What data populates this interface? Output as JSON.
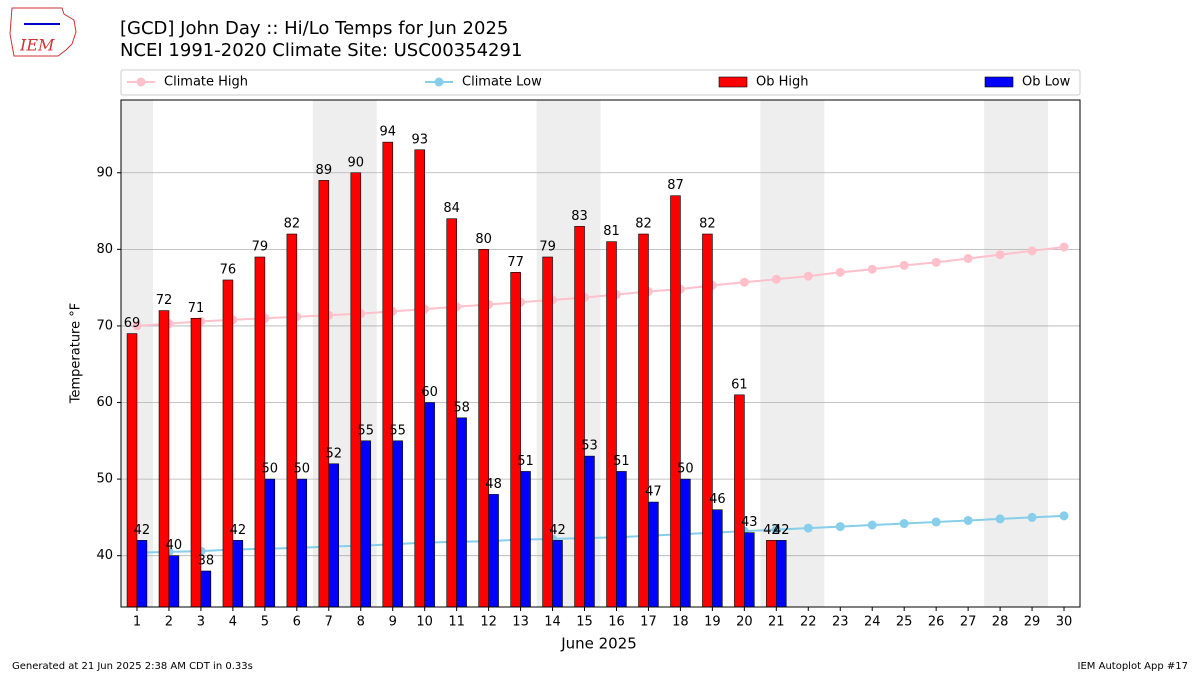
{
  "chart_data": {
    "type": "bar",
    "title": "[GCD] John Day :: Hi/Lo Temps for Jun 2025",
    "subtitle": "NCEI 1991-2020 Climate Site: USC00354291",
    "x_label": "June 2025",
    "y_label": "Temperature °F",
    "x": [
      1,
      2,
      3,
      4,
      5,
      6,
      7,
      8,
      9,
      10,
      11,
      12,
      13,
      14,
      15,
      16,
      17,
      18,
      19,
      20,
      21,
      22,
      23,
      24,
      25,
      26,
      27,
      28,
      29,
      30
    ],
    "xlim": [
      0.5,
      30.5
    ],
    "xticks": [
      1,
      2,
      3,
      4,
      5,
      6,
      7,
      8,
      9,
      10,
      11,
      12,
      13,
      14,
      15,
      16,
      17,
      18,
      19,
      20,
      21,
      22,
      23,
      24,
      25,
      26,
      27,
      28,
      29,
      30
    ],
    "ylim": [
      33.3,
      99.5
    ],
    "yticks": [
      40,
      50,
      60,
      70,
      80,
      90
    ],
    "grid": true,
    "shaded_spans": [
      [
        0.5,
        1.5
      ],
      [
        6.5,
        8.5
      ],
      [
        13.5,
        15.5
      ],
      [
        20.5,
        22.5
      ],
      [
        27.5,
        29.5
      ]
    ],
    "shade_color": "#eeeeee",
    "series": [
      {
        "name": "Climate High",
        "type": "line",
        "color": "#ffc0cb",
        "values": [
          70.0,
          70.3,
          70.6,
          70.8,
          71.0,
          71.2,
          71.4,
          71.6,
          71.9,
          72.2,
          72.5,
          72.8,
          73.1,
          73.4,
          73.7,
          74.1,
          74.5,
          74.8,
          75.3,
          75.7,
          76.1,
          76.5,
          77.0,
          77.4,
          77.9,
          78.3,
          78.8,
          79.3,
          79.8,
          80.3
        ]
      },
      {
        "name": "Climate Low",
        "type": "line",
        "color": "#87ceeb",
        "values": [
          40.4,
          40.5,
          40.6,
          40.8,
          40.9,
          41.0,
          41.2,
          41.3,
          41.5,
          41.7,
          41.8,
          41.9,
          42.1,
          42.2,
          42.3,
          42.4,
          42.6,
          42.8,
          43.0,
          43.2,
          43.4,
          43.6,
          43.8,
          44.0,
          44.2,
          44.4,
          44.6,
          44.8,
          45.0,
          45.2
        ]
      },
      {
        "name": "Ob High",
        "type": "bar",
        "color": "#ff0000",
        "values": [
          69,
          72,
          71,
          76,
          79,
          82,
          89,
          90,
          94,
          93,
          84,
          80,
          77,
          79,
          83,
          81,
          82,
          87,
          82,
          61,
          42,
          null,
          null,
          null,
          null,
          null,
          null,
          null,
          null,
          null
        ]
      },
      {
        "name": "Ob Low",
        "type": "bar",
        "color": "#0000ff",
        "values": [
          42,
          40,
          38,
          42,
          50,
          50,
          52,
          55,
          55,
          60,
          58,
          48,
          51,
          42,
          53,
          51,
          47,
          50,
          46,
          43,
          42,
          null,
          null,
          null,
          null,
          null,
          null,
          null,
          null,
          null
        ]
      }
    ]
  },
  "logo": "IEM",
  "footer": {
    "left": "Generated at 21 Jun 2025 2:38 AM CDT in 0.33s",
    "right": "IEM Autoplot App #17"
  }
}
